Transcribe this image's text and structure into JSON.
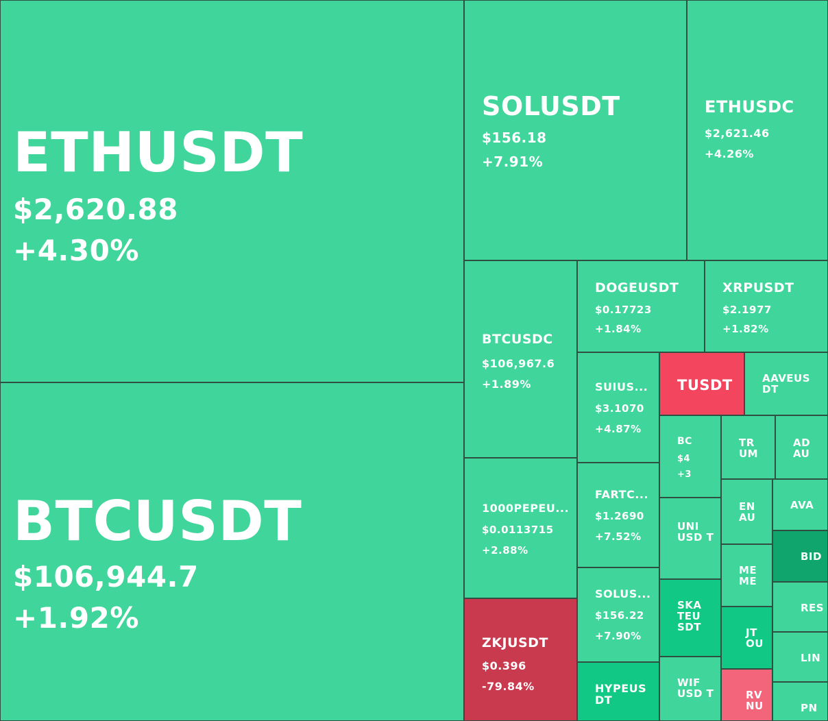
{
  "colors": {
    "up": "#3fd59b",
    "up_strong": "#11c985",
    "up_dark": "#0fa56c",
    "down": "#ca3a4f",
    "down_bright": "#f4455f",
    "down_light": "#f3657a"
  },
  "chart_data": {
    "type": "treemap",
    "tiles": [
      {
        "symbol": "ETHUSDT",
        "price": "$2,620.88",
        "change": "+4.30%"
      },
      {
        "symbol": "BTCUSDT",
        "price": "$106,944.7",
        "change": "+1.92%"
      },
      {
        "symbol": "SOLUSDT",
        "price": "$156.18",
        "change": "+7.91%"
      },
      {
        "symbol": "ETHUSDC",
        "price": "$2,621.46",
        "change": "+4.26%"
      },
      {
        "symbol": "BTCUSDC",
        "price": "$106,967.6",
        "change": "+1.89%"
      },
      {
        "symbol": "DOGEUSDT",
        "price": "$0.17723",
        "change": "+1.84%"
      },
      {
        "symbol": "XRPUSDT",
        "price": "$2.1977",
        "change": "+1.82%"
      },
      {
        "symbol": "SUIUS...",
        "price": "$3.1070",
        "change": "+4.87%"
      },
      {
        "symbol": "TUSDT",
        "price": "",
        "change": ""
      },
      {
        "symbol": "AAVEUS DT",
        "price": "",
        "change": ""
      },
      {
        "symbol": "BC",
        "price": "$4",
        "change": "+3"
      },
      {
        "symbol": "TR UM",
        "price": "",
        "change": ""
      },
      {
        "symbol": "AD AU",
        "price": "",
        "change": ""
      },
      {
        "symbol": "1000PEPEU...",
        "price": "$0.0113715",
        "change": "+2.88%"
      },
      {
        "symbol": "FARTC...",
        "price": "$1.2690",
        "change": "+7.52%"
      },
      {
        "symbol": "UNI USD T",
        "price": "",
        "change": ""
      },
      {
        "symbol": "EN AU",
        "price": "",
        "change": ""
      },
      {
        "symbol": "AVA",
        "price": "",
        "change": ""
      },
      {
        "symbol": "BID",
        "price": "",
        "change": ""
      },
      {
        "symbol": "ME ME",
        "price": "",
        "change": ""
      },
      {
        "symbol": "RES",
        "price": "",
        "change": ""
      },
      {
        "symbol": "SOLUS...",
        "price": "$156.22",
        "change": "+7.90%"
      },
      {
        "symbol": "SKA TEU SDT",
        "price": "",
        "change": ""
      },
      {
        "symbol": "JT OU",
        "price": "",
        "change": ""
      },
      {
        "symbol": "LIN",
        "price": "",
        "change": ""
      },
      {
        "symbol": "ZKJUSDT",
        "price": "$0.396",
        "change": "-79.84%"
      },
      {
        "symbol": "HYPEUS DT",
        "price": "",
        "change": ""
      },
      {
        "symbol": "WIF USD T",
        "price": "",
        "change": ""
      },
      {
        "symbol": "RV NU",
        "price": "",
        "change": ""
      },
      {
        "symbol": "PN",
        "price": "",
        "change": ""
      }
    ]
  }
}
